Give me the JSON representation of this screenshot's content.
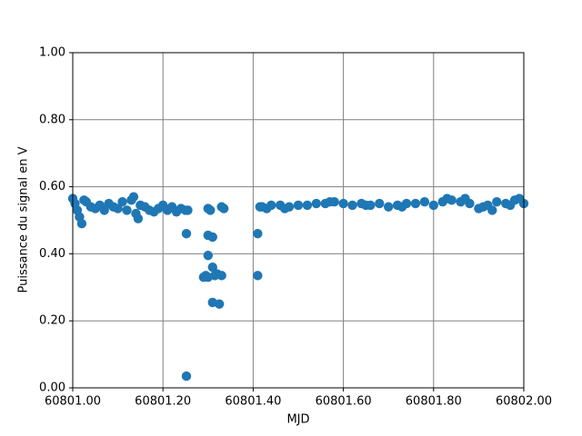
{
  "chart_data": {
    "type": "scatter",
    "xlabel": "MJD",
    "ylabel": "Puissance du signal en V",
    "color": "#1f77b4",
    "grid": true,
    "xlim": [
      60801.0,
      60802.0
    ],
    "xticks": [
      {
        "value": 60801.0,
        "label": "60801.00"
      },
      {
        "value": 60801.2,
        "label": "60801.20"
      },
      {
        "value": 60801.4,
        "label": "60801.40"
      },
      {
        "value": 60801.6,
        "label": "60801.60"
      },
      {
        "value": 60801.8,
        "label": "60801.80"
      },
      {
        "value": 60802.0,
        "label": "60802.00"
      }
    ],
    "ylim": [
      0,
      1
    ],
    "yticks": [
      {
        "value": 0,
        "label": "0.00"
      },
      {
        "value": 0.2,
        "label": "0.20"
      },
      {
        "value": 0.4,
        "label": "0.40"
      },
      {
        "value": 0.6,
        "label": "0.60"
      },
      {
        "value": 0.8,
        "label": "0.80"
      },
      {
        "value": 1,
        "label": "1.00"
      }
    ],
    "x": [
      60801.0,
      60801.005,
      60801.01,
      60801.015,
      60801.02,
      60801.025,
      60801.03,
      60801.04,
      60801.05,
      60801.06,
      60801.07,
      60801.08,
      60801.09,
      60801.1,
      60801.11,
      60801.12,
      60801.13,
      60801.135,
      60801.14,
      60801.145,
      60801.15,
      60801.16,
      60801.17,
      60801.18,
      60801.19,
      60801.2,
      60801.21,
      60801.22,
      60801.23,
      60801.24,
      60801.25,
      60801.255,
      60801.252,
      60801.252,
      60801.29,
      60801.295,
      60801.3,
      60801.3,
      60801.3,
      60801.3,
      60801.305,
      60801.31,
      60801.31,
      60801.31,
      60801.315,
      60801.32,
      60801.325,
      60801.33,
      60801.33,
      60801.335,
      60801.41,
      60801.41,
      60801.415,
      60801.42,
      60801.43,
      60801.44,
      60801.46,
      60801.47,
      60801.48,
      60801.5,
      60801.52,
      60801.54,
      60801.56,
      60801.57,
      60801.58,
      60801.6,
      60801.62,
      60801.64,
      60801.65,
      60801.66,
      60801.68,
      60801.7,
      60801.72,
      60801.73,
      60801.74,
      60801.76,
      60801.78,
      60801.8,
      60801.82,
      60801.83,
      60801.84,
      60801.86,
      60801.87,
      60801.88,
      60801.9,
      60801.91,
      60801.92,
      60801.93,
      60801.94,
      60801.96,
      60801.97,
      60801.98,
      60801.99,
      60802.0
    ],
    "values": [
      0.565,
      0.55,
      0.53,
      0.51,
      0.49,
      0.56,
      0.555,
      0.54,
      0.535,
      0.545,
      0.53,
      0.55,
      0.54,
      0.535,
      0.555,
      0.53,
      0.56,
      0.57,
      0.52,
      0.505,
      0.545,
      0.54,
      0.53,
      0.525,
      0.535,
      0.545,
      0.53,
      0.54,
      0.525,
      0.535,
      0.53,
      0.53,
      0.46,
      0.035,
      0.33,
      0.335,
      0.33,
      0.395,
      0.455,
      0.535,
      0.53,
      0.45,
      0.36,
      0.255,
      0.335,
      0.34,
      0.25,
      0.335,
      0.54,
      0.535,
      0.46,
      0.335,
      0.54,
      0.54,
      0.535,
      0.545,
      0.545,
      0.535,
      0.54,
      0.545,
      0.545,
      0.55,
      0.55,
      0.555,
      0.555,
      0.55,
      0.545,
      0.55,
      0.545,
      0.545,
      0.55,
      0.54,
      0.545,
      0.54,
      0.55,
      0.55,
      0.555,
      0.545,
      0.555,
      0.565,
      0.56,
      0.555,
      0.565,
      0.55,
      0.535,
      0.54,
      0.545,
      0.53,
      0.555,
      0.55,
      0.545,
      0.56,
      0.565,
      0.55
    ]
  }
}
